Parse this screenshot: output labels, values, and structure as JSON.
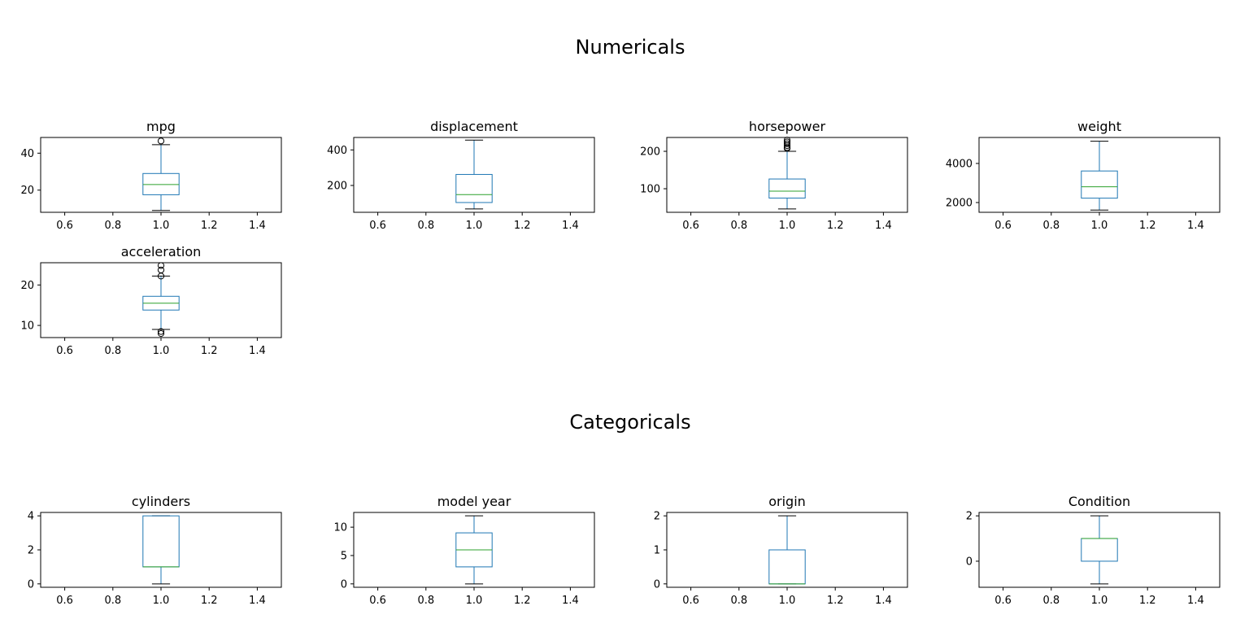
{
  "suptitles": {
    "numericals": "Numericals",
    "categoricals": "Categoricals"
  },
  "colors": {
    "box": "#1f77b4",
    "median": "#2ca02c",
    "whisker": "#1f77b4",
    "cap": "#000000",
    "flier": "#000000",
    "axes": "#000000"
  },
  "chart_data": [
    {
      "type": "box",
      "group": "Numericals",
      "title": "mpg",
      "xlim": [
        0.5,
        1.5
      ],
      "xticks": [
        "0.6",
        "0.8",
        "1.0",
        "1.2",
        "1.4"
      ],
      "ylim": [
        8.0,
        48.5
      ],
      "yticks": [
        20,
        40
      ],
      "box": {
        "x": 1.0,
        "whislo": 9.0,
        "q1": 17.5,
        "med": 23.0,
        "q3": 29.0,
        "whishi": 44.6,
        "fliers": [
          46.6
        ]
      }
    },
    {
      "type": "box",
      "group": "Numericals",
      "title": "displacement",
      "xlim": [
        0.5,
        1.5
      ],
      "xticks": [
        "0.6",
        "0.8",
        "1.0",
        "1.2",
        "1.4"
      ],
      "ylim": [
        49,
        470
      ],
      "yticks": [
        200,
        400
      ],
      "box": {
        "x": 1.0,
        "whislo": 68,
        "q1": 104,
        "med": 148.5,
        "q3": 262,
        "whishi": 455,
        "fliers": []
      }
    },
    {
      "type": "box",
      "group": "Numericals",
      "title": "horsepower",
      "xlim": [
        0.5,
        1.5
      ],
      "xticks": [
        "0.6",
        "0.8",
        "1.0",
        "1.2",
        "1.4"
      ],
      "ylim": [
        37,
        237
      ],
      "yticks": [
        100,
        200
      ],
      "box": {
        "x": 1.0,
        "whislo": 46,
        "q1": 75,
        "med": 93.5,
        "q3": 126,
        "whishi": 200,
        "fliers": [
          208,
          210,
          215,
          220,
          225,
          230
        ]
      }
    },
    {
      "type": "box",
      "group": "Numericals",
      "title": "weight",
      "xlim": [
        0.5,
        1.5
      ],
      "xticks": [
        "0.6",
        "0.8",
        "1.0",
        "1.2",
        "1.4"
      ],
      "ylim": [
        1500,
        5330
      ],
      "yticks": [
        2000,
        4000
      ],
      "box": {
        "x": 1.0,
        "whislo": 1613,
        "q1": 2224,
        "med": 2804,
        "q3": 3615,
        "whishi": 5140,
        "fliers": []
      }
    },
    {
      "type": "box",
      "group": "Numericals",
      "title": "acceleration",
      "xlim": [
        0.5,
        1.5
      ],
      "xticks": [
        "0.6",
        "0.8",
        "1.0",
        "1.2",
        "1.4"
      ],
      "ylim": [
        7.0,
        25.5
      ],
      "yticks": [
        10,
        20
      ],
      "box": {
        "x": 1.0,
        "whislo": 9.0,
        "q1": 13.8,
        "med": 15.5,
        "q3": 17.2,
        "whishi": 22.2,
        "fliers": [
          24.8,
          23.7,
          22.2,
          8.0,
          8.5
        ]
      }
    },
    {
      "type": "box",
      "group": "Categoricals",
      "title": "cylinders",
      "xlim": [
        0.5,
        1.5
      ],
      "xticks": [
        "0.6",
        "0.8",
        "1.0",
        "1.2",
        "1.4"
      ],
      "ylim": [
        -0.2,
        4.2
      ],
      "yticks": [
        0,
        2,
        4
      ],
      "box": {
        "x": 1.0,
        "whislo": 0,
        "q1": 1,
        "med": 1,
        "q3": 4,
        "whishi": 4,
        "fliers": []
      }
    },
    {
      "type": "box",
      "group": "Categoricals",
      "title": "model year",
      "xlim": [
        0.5,
        1.5
      ],
      "xticks": [
        "0.6",
        "0.8",
        "1.0",
        "1.2",
        "1.4"
      ],
      "ylim": [
        -0.6,
        12.6
      ],
      "yticks": [
        0,
        5,
        10
      ],
      "box": {
        "x": 1.0,
        "whislo": 0,
        "q1": 3,
        "med": 6,
        "q3": 9,
        "whishi": 12,
        "fliers": []
      }
    },
    {
      "type": "box",
      "group": "Categoricals",
      "title": "origin",
      "xlim": [
        0.5,
        1.5
      ],
      "xticks": [
        "0.6",
        "0.8",
        "1.0",
        "1.2",
        "1.4"
      ],
      "ylim": [
        -0.1,
        2.1
      ],
      "yticks": [
        0,
        1,
        2
      ],
      "box": {
        "x": 1.0,
        "whislo": 0,
        "q1": 0,
        "med": 0,
        "q3": 1,
        "whishi": 2,
        "fliers": []
      }
    },
    {
      "type": "box",
      "group": "Categoricals",
      "title": "Condition",
      "xlim": [
        0.5,
        1.5
      ],
      "xticks": [
        "0.6",
        "0.8",
        "1.0",
        "1.2",
        "1.4"
      ],
      "ylim": [
        -1.15,
        2.15
      ],
      "yticks": [
        0,
        2
      ],
      "box": {
        "x": 1.0,
        "whislo": -1,
        "q1": 0,
        "med": 1,
        "q3": 1,
        "whishi": 2,
        "fliers": []
      }
    }
  ]
}
